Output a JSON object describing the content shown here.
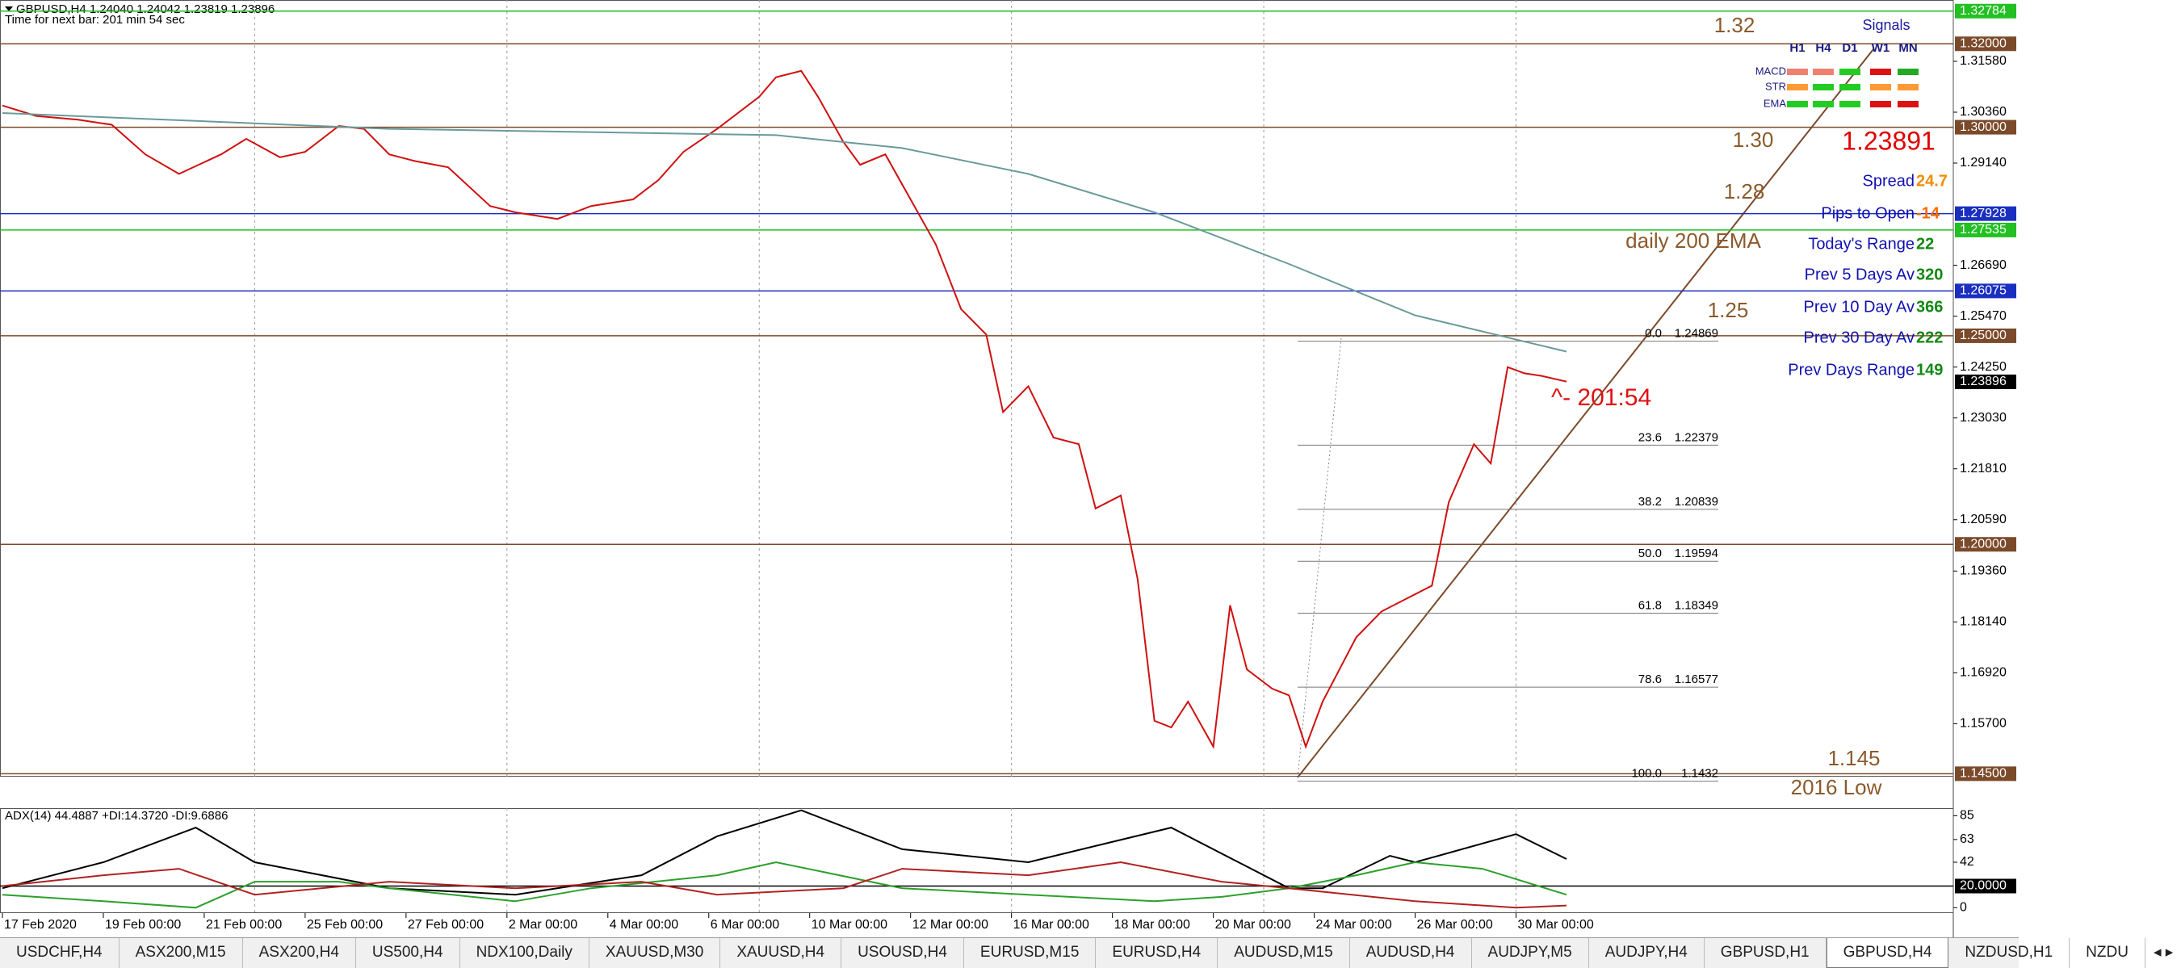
{
  "chart_data": [
    {
      "type": "line",
      "title": "GBPUSD,H4  1.24040 1.24042 1.23819 1.23896",
      "subtitle": "Time for next bar: 201 min 54 sec",
      "xlim": [
        0,
        232
      ],
      "ylim": [
        1.1443,
        1.3305
      ],
      "yticks": [
        {
          "value": 1.3158,
          "label": "1.31580"
        },
        {
          "value": 1.3036,
          "label": "1.30360"
        },
        {
          "value": 1.2914,
          "label": "1.29140"
        },
        {
          "value": 1.2669,
          "label": "1.26690"
        },
        {
          "value": 1.2547,
          "label": "1.25470"
        },
        {
          "value": 1.2425,
          "label": "1.24250"
        },
        {
          "value": 1.2303,
          "label": "1.23030"
        },
        {
          "value": 1.2181,
          "label": "1.21810"
        },
        {
          "value": 1.2059,
          "label": "1.20590"
        },
        {
          "value": 1.1936,
          "label": "1.19360"
        },
        {
          "value": 1.1814,
          "label": "1.18140"
        },
        {
          "value": 1.1692,
          "label": "1.16920"
        },
        {
          "value": 1.157,
          "label": "1.15700"
        }
      ],
      "levels": [
        {
          "value": 1.32784,
          "label": "1.32784",
          "color": "#22c022"
        },
        {
          "value": 1.32,
          "label": "1.32000",
          "color": "#7b4a2a"
        },
        {
          "value": 1.3,
          "label": "1.30000",
          "color": "#7b4a2a"
        },
        {
          "value": 1.27928,
          "label": "1.27928",
          "color": "#1a2fc0"
        },
        {
          "value": 1.27535,
          "label": "1.27535",
          "color": "#22c022"
        },
        {
          "value": 1.26075,
          "label": "1.26075",
          "color": "#1a2fc0"
        },
        {
          "value": 1.25,
          "label": "1.25000",
          "color": "#7b4a2a"
        },
        {
          "value": 1.2,
          "label": "1.20000",
          "color": "#7b4a2a"
        },
        {
          "value": 1.145,
          "label": "1.14500",
          "color": "#7b4a2a"
        }
      ],
      "current": {
        "value": 1.23896,
        "label": "1.23896",
        "color": "#000000"
      },
      "series": [
        {
          "color": "#d01010",
          "x": [
            0,
            4,
            9,
            13,
            17,
            21,
            26,
            29,
            33,
            36,
            40,
            43,
            46,
            49,
            53,
            58,
            61,
            66,
            70,
            75,
            78,
            81,
            85,
            90,
            92,
            95,
            97,
            100,
            102,
            105,
            108,
            111,
            114,
            117,
            119,
            122,
            125,
            128,
            130,
            133,
            135,
            137,
            139,
            141,
            144,
            146,
            148,
            151,
            153,
            155,
            157,
            159,
            161,
            164,
            167,
            170,
            172,
            175,
            177,
            179,
            181,
            183,
            186
          ],
          "values": [
            1.3052,
            1.3027,
            1.3018,
            1.3006,
            1.2935,
            1.2888,
            1.2935,
            1.2972,
            1.2928,
            1.2941,
            1.3003,
            1.2996,
            1.2935,
            1.2919,
            1.2904,
            1.2811,
            1.2796,
            1.278,
            1.2811,
            1.2827,
            1.2873,
            1.2941,
            1.2996,
            1.3073,
            1.312,
            1.3135,
            1.3073,
            1.2965,
            1.291,
            1.2935,
            1.2827,
            1.2719,
            1.2564,
            1.2503,
            1.2317,
            1.2379,
            1.2256,
            1.224,
            1.2086,
            1.2117,
            1.1916,
            1.1577,
            1.1561,
            1.1623,
            1.1515,
            1.1854,
            1.17,
            1.1654,
            1.1638,
            1.1515,
            1.1623,
            1.17,
            1.1777,
            1.1839,
            1.187,
            1.1901,
            1.2101,
            1.224,
            1.2194,
            1.2425,
            1.241,
            1.2404,
            1.239
          ]
        },
        {
          "color": "#6b9a9a",
          "x": [
            0,
            46,
            92,
            107,
            122,
            137,
            153,
            168,
            186
          ],
          "values": [
            1.3034,
            1.2996,
            1.2981,
            1.295,
            1.2888,
            1.2796,
            1.2672,
            1.2549,
            1.2462
          ]
        }
      ],
      "fib": [
        {
          "ratio": "0.0",
          "price": 1.24869
        },
        {
          "ratio": "23.6",
          "price": 1.22379
        },
        {
          "ratio": "38.2",
          "price": 1.20839
        },
        {
          "ratio": "50.0",
          "price": 1.19594
        },
        {
          "ratio": "61.8",
          "price": 1.18349
        },
        {
          "ratio": "78.6",
          "price": 1.16577
        },
        {
          "ratio": "100.0",
          "price": 1.1432
        }
      ],
      "annotations": [
        "1.32",
        "1.30",
        "1.28",
        "daily 200 EMA",
        "1.25",
        "1.145",
        "2016 Low"
      ],
      "timer": "^- 201:54"
    },
    {
      "type": "line",
      "title": "ADX(14) 44.4887 +DI:14.3720 -DI:9.6886",
      "xlim": [
        0,
        232
      ],
      "ylim": [
        -5,
        92
      ],
      "yticks": [
        85,
        63,
        42,
        0
      ],
      "levels": [
        {
          "value": 20,
          "label": "20.0000",
          "color": "#000000"
        }
      ],
      "xticks": [
        {
          "value": 0,
          "label": "17 Feb 2020"
        },
        {
          "value": 12,
          "label": "19 Feb 00:00"
        },
        {
          "value": 24,
          "label": "21 Feb 00:00"
        },
        {
          "value": 36,
          "label": "25 Feb 00:00"
        },
        {
          "value": 48,
          "label": "27 Feb 00:00"
        },
        {
          "value": 60,
          "label": "2 Mar 00:00"
        },
        {
          "value": 72,
          "label": "4 Mar 00:00"
        },
        {
          "value": 84,
          "label": "6 Mar 00:00"
        },
        {
          "value": 96,
          "label": "10 Mar 00:00"
        },
        {
          "value": 108,
          "label": "12 Mar 00:00"
        },
        {
          "value": 120,
          "label": "16 Mar 00:00"
        },
        {
          "value": 132,
          "label": "18 Mar 00:00"
        },
        {
          "value": 144,
          "label": "20 Mar 00:00"
        },
        {
          "value": 156,
          "label": "24 Mar 00:00"
        },
        {
          "value": 168,
          "label": "26 Mar 00:00"
        },
        {
          "value": 180,
          "label": "30 Mar 00:00"
        }
      ],
      "series": [
        {
          "color": "#000000",
          "x": [
            0,
            12,
            23,
            30,
            46,
            61,
            76,
            85,
            95,
            107,
            122,
            139,
            147,
            153,
            157,
            165,
            168,
            180,
            186
          ],
          "values": [
            18,
            42,
            74,
            42,
            18,
            12,
            30,
            66,
            90,
            54,
            42,
            74,
            42,
            18,
            18,
            48,
            42,
            68,
            45
          ]
        },
        {
          "color": "#2ca02c",
          "x": [
            0,
            12,
            23,
            30,
            40,
            46,
            61,
            70,
            85,
            92,
            107,
            122,
            137,
            145,
            153,
            161,
            168,
            176,
            186
          ],
          "values": [
            12,
            6,
            0,
            24,
            24,
            18,
            6,
            18,
            30,
            42,
            18,
            12,
            6,
            10,
            18,
            30,
            42,
            36,
            12
          ]
        },
        {
          "color": "#b22222",
          "x": [
            0,
            12,
            21,
            30,
            46,
            61,
            76,
            85,
            100,
            107,
            122,
            133,
            145,
            153,
            168,
            180,
            186
          ],
          "values": [
            20,
            30,
            36,
            12,
            24,
            18,
            24,
            12,
            18,
            36,
            30,
            42,
            24,
            18,
            6,
            0,
            2
          ]
        }
      ]
    }
  ],
  "signals": {
    "title": "Signals",
    "columns": [
      "H1",
      "H4",
      "D1",
      "W1",
      "MN"
    ],
    "rows": [
      {
        "label": "MACD",
        "colors": [
          "#f08070",
          "#f08070",
          "#22cc22",
          "#dd1111",
          "#22aa22"
        ]
      },
      {
        "label": "STR",
        "colors": [
          "#ff9933",
          "#22cc22",
          "#22cc22",
          "#ff9933",
          "#ff9933"
        ]
      },
      {
        "label": "EMA",
        "colors": [
          "#22cc22",
          "#22cc22",
          "#22cc22",
          "#dd1111",
          "#dd1111"
        ]
      }
    ]
  },
  "info": {
    "price": 1.23891,
    "rows": [
      {
        "label": "Spread",
        "value": 24.7,
        "color": "#f08c00"
      },
      {
        "label": "Pips to Open",
        "value": -14,
        "color": "#ff6a00"
      },
      {
        "label": "Today's Range",
        "value": 22,
        "color": "#118811"
      },
      {
        "label": "Prev 5 Days Av",
        "value": 320,
        "color": "#118811"
      },
      {
        "label": "Prev 10 Day Av",
        "value": 366,
        "color": "#118811"
      },
      {
        "label": "Prev 30 Day Av",
        "value": 222,
        "color": "#118811"
      },
      {
        "label": "Prev Days Range",
        "value": 149,
        "color": "#118811"
      }
    ]
  },
  "tabs": [
    {
      "label": "USDCHF,H4"
    },
    {
      "label": "ASX200,M15"
    },
    {
      "label": "ASX200,H4"
    },
    {
      "label": "US500,H4"
    },
    {
      "label": "NDX100,Daily"
    },
    {
      "label": "XAUUSD,M30"
    },
    {
      "label": "XAUUSD,H4"
    },
    {
      "label": "USOUSD,H4"
    },
    {
      "label": "EURUSD,M15"
    },
    {
      "label": "EURUSD,H4"
    },
    {
      "label": "AUDUSD,M15"
    },
    {
      "label": "AUDUSD,H4"
    },
    {
      "label": "AUDJPY,M5"
    },
    {
      "label": "AUDJPY,H4"
    },
    {
      "label": "GBPUSD,H1"
    },
    {
      "label": "GBPUSD,H4",
      "active": true
    },
    {
      "label": "NZDUSD,H1"
    },
    {
      "label": "NZDU"
    }
  ]
}
